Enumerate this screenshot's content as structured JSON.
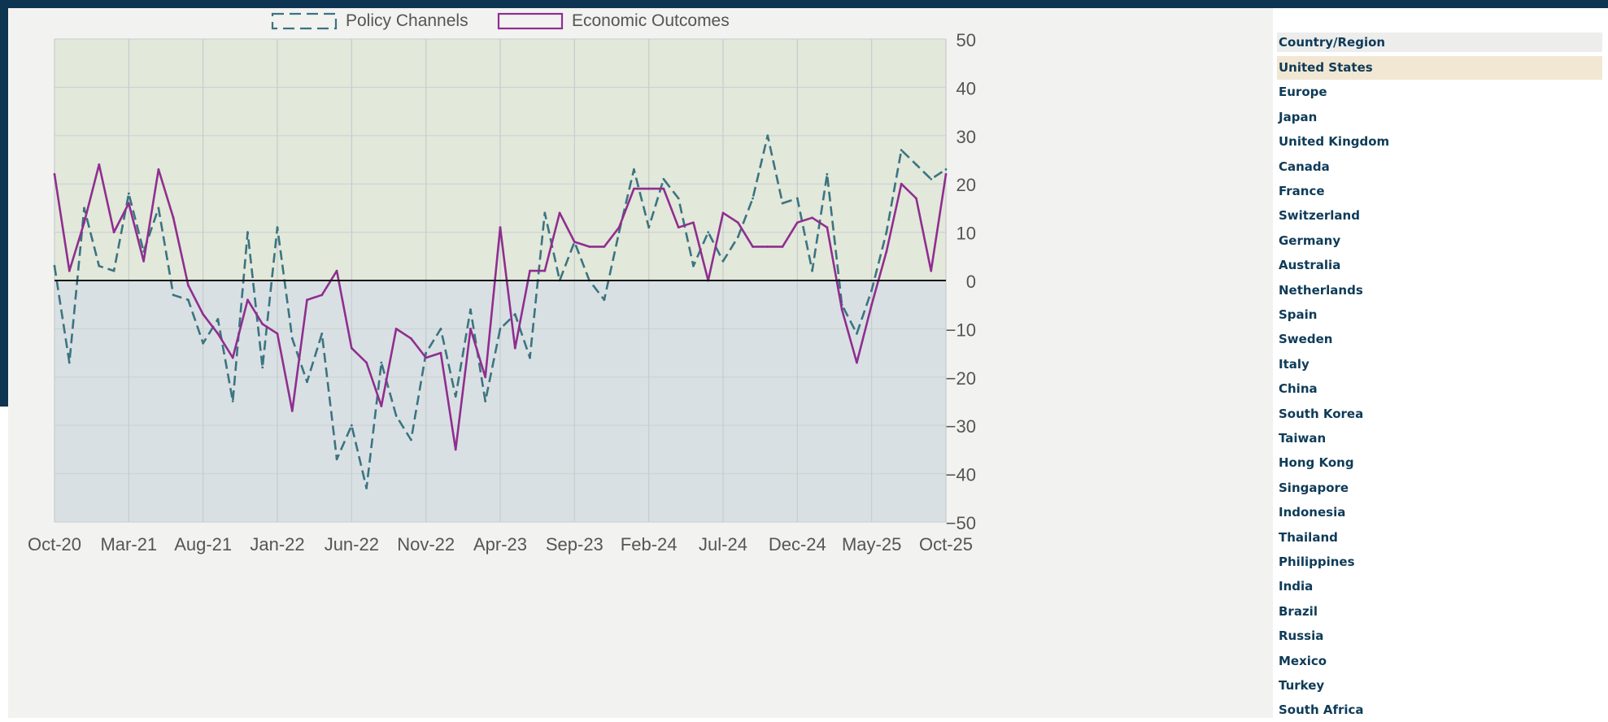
{
  "chart_data": {
    "type": "line",
    "legend_position": "top-center",
    "grid": true,
    "ylim": [
      -50,
      50
    ],
    "yticks": [
      50,
      40,
      30,
      20,
      10,
      0,
      -10,
      -20,
      -30,
      -40,
      -50
    ],
    "xtick_labels": [
      "Oct-20",
      "Mar-21",
      "Aug-21",
      "Jan-22",
      "Jun-22",
      "Nov-22",
      "Apr-23",
      "Sep-23",
      "Feb-24",
      "Jul-24",
      "Dec-24",
      "May-25",
      "Oct-25"
    ],
    "x": [
      "Oct-20",
      "Nov-20",
      "Dec-20",
      "Jan-21",
      "Feb-21",
      "Mar-21",
      "Apr-21",
      "May-21",
      "Jun-21",
      "Jul-21",
      "Aug-21",
      "Sep-21",
      "Oct-21",
      "Nov-21",
      "Dec-21",
      "Jan-22",
      "Feb-22",
      "Mar-22",
      "Apr-22",
      "May-22",
      "Jun-22",
      "Jul-22",
      "Aug-22",
      "Sep-22",
      "Oct-22",
      "Nov-22",
      "Dec-22",
      "Jan-23",
      "Feb-23",
      "Mar-23",
      "Apr-23",
      "May-23",
      "Jun-23",
      "Jul-23",
      "Aug-23",
      "Sep-23",
      "Oct-23",
      "Nov-23",
      "Dec-23",
      "Jan-24",
      "Feb-24",
      "Mar-24",
      "Apr-24",
      "May-24",
      "Jun-24",
      "Jul-24",
      "Aug-24",
      "Sep-24",
      "Oct-24",
      "Nov-24",
      "Dec-24",
      "Jan-25",
      "Feb-25",
      "Mar-25",
      "Apr-25",
      "May-25",
      "Jun-25",
      "Jul-25",
      "Aug-25",
      "Sep-25",
      "Oct-25"
    ],
    "series": [
      {
        "name": "Policy Channels",
        "color": "#3b7481",
        "style": "dashed",
        "values": [
          3,
          -17,
          15,
          3,
          2,
          18,
          6,
          15,
          -3,
          -4,
          -13,
          -8,
          -25,
          10,
          -18,
          11,
          -12,
          -21,
          -11,
          -37,
          -30,
          -43,
          -17,
          -28,
          -33,
          -15,
          -10,
          -24,
          -6,
          -25,
          -10,
          -7,
          -16,
          14,
          0,
          8,
          0,
          -4,
          10,
          23,
          11,
          21,
          17,
          3,
          10,
          4,
          9,
          17,
          30,
          16,
          17,
          2,
          22,
          -5,
          -11,
          -2,
          10,
          27,
          24,
          21,
          23
        ]
      },
      {
        "name": "Economic Outcomes",
        "color": "#8f2e8f",
        "style": "solid",
        "values": [
          22,
          2,
          12,
          24,
          10,
          16,
          4,
          23,
          13,
          -1,
          -7,
          -11,
          -16,
          -4,
          -9,
          -11,
          -27,
          -4,
          -3,
          2,
          -14,
          -17,
          -26,
          -10,
          -12,
          -16,
          -15,
          -35,
          -10,
          -20,
          11,
          -14,
          2,
          2,
          14,
          8,
          7,
          7,
          11,
          19,
          19,
          19,
          11,
          12,
          0,
          14,
          12,
          7,
          7,
          7,
          12,
          13,
          11,
          -6,
          -17,
          -5,
          6,
          20,
          17,
          2,
          22
        ]
      }
    ],
    "shading": {
      "positive_color": "#e2e8da",
      "negative_color": "#d9e0e3"
    }
  },
  "country_panel": {
    "header": "Country/Region",
    "selected": "United States",
    "items": [
      "United States",
      "Europe",
      "Japan",
      "United Kingdom",
      "Canada",
      "France",
      "Switzerland",
      "Germany",
      "Australia",
      "Netherlands",
      "Spain",
      "Sweden",
      "Italy",
      "China",
      "South Korea",
      "Taiwan",
      "Hong Kong",
      "Singapore",
      "Indonesia",
      "Thailand",
      "Philippines",
      "India",
      "Brazil",
      "Russia",
      "Mexico",
      "Turkey",
      "South Africa"
    ]
  }
}
